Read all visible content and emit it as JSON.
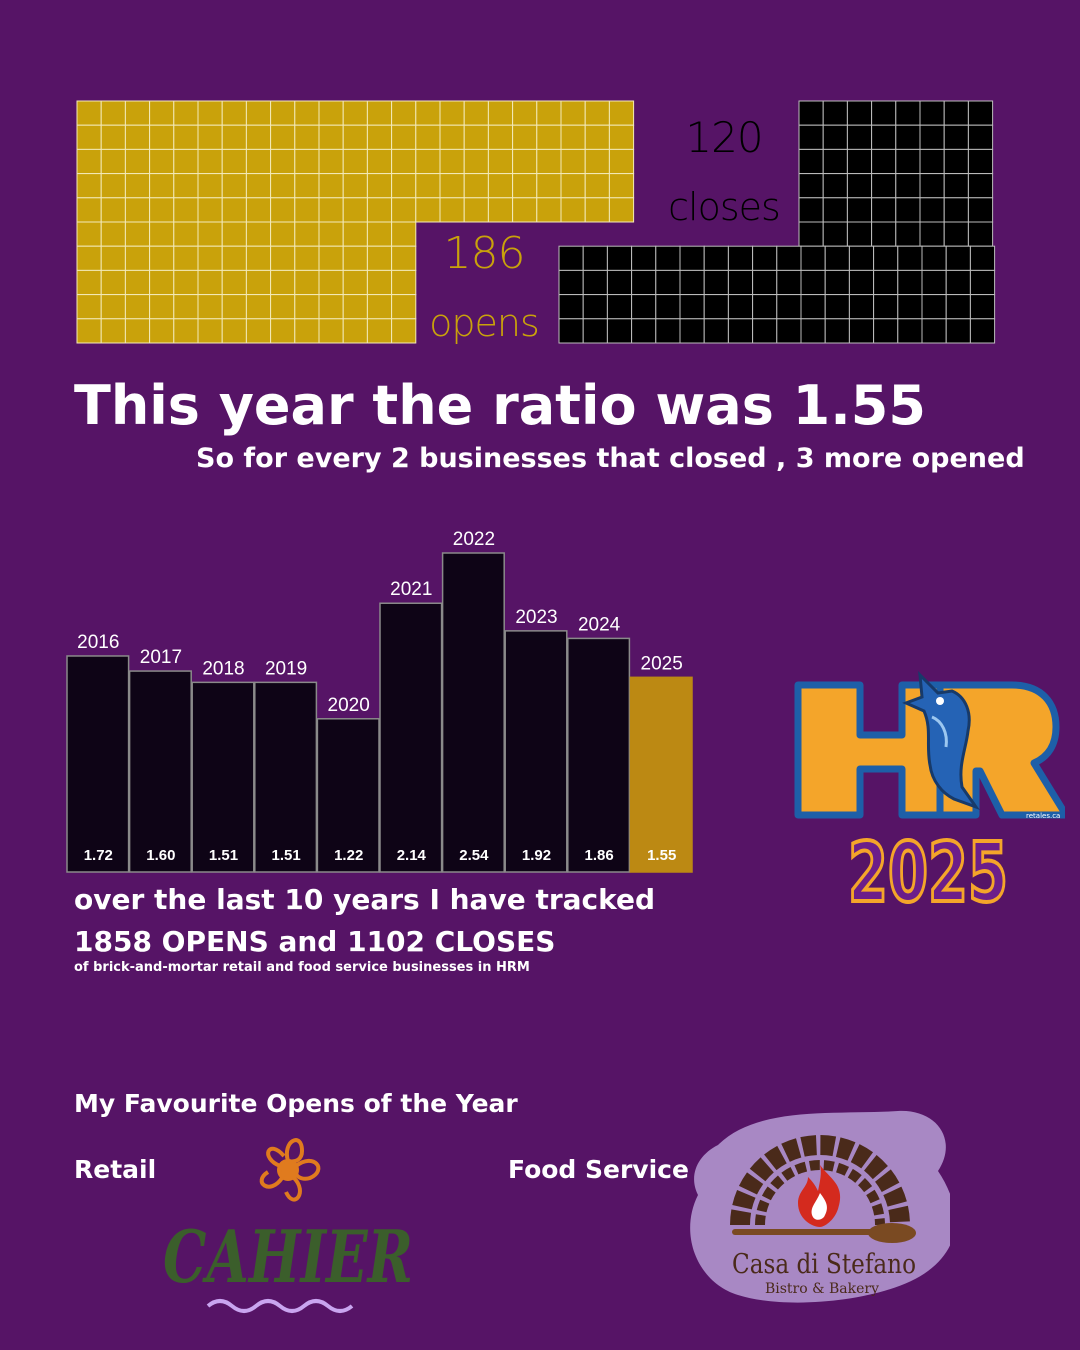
{
  "waffle": {
    "opens_count": "186",
    "opens_label": "opens",
    "closes_count": "120",
    "closes_label": "closes",
    "opens_color": "#C9A20B",
    "closes_color": "#000000"
  },
  "headline": "This year the ratio was 1.55",
  "subline": "So for every 2 businesses that closed , 3 more opened",
  "chart_data": {
    "type": "bar",
    "categories": [
      "2016",
      "2017",
      "2018",
      "2019",
      "2020",
      "2021",
      "2022",
      "2023",
      "2024",
      "2025"
    ],
    "values": [
      1.72,
      1.6,
      1.51,
      1.51,
      1.22,
      2.14,
      2.54,
      1.92,
      1.86,
      1.55
    ],
    "value_labels": [
      "1.72",
      "1.60",
      "1.51",
      "1.51",
      "1.22",
      "2.14",
      "2.54",
      "1.92",
      "1.86",
      "1.55"
    ],
    "title": "",
    "xlabel": "",
    "ylabel": "",
    "bar_color": "#0E0416",
    "highlight_color": "#BC8913",
    "highlight_category": "2025",
    "grid": false
  },
  "summary": {
    "line1": "over the last 10 years I have tracked",
    "line2": "1858 OPENS and 1102 CLOSES",
    "line3": "of brick-and-mortar retail and food service businesses in HRM"
  },
  "favourites": {
    "title": "My Favourite Opens of the Year",
    "retail_label": "Retail",
    "food_label": "Food Service"
  },
  "logos": {
    "hr_letters": "HR",
    "hr_year": "2025",
    "hr_small": "retales.ca",
    "cahier_name": "CAHIER",
    "casa_name": "Casa di Stefano",
    "casa_sub": "Bistro & Bakery"
  }
}
